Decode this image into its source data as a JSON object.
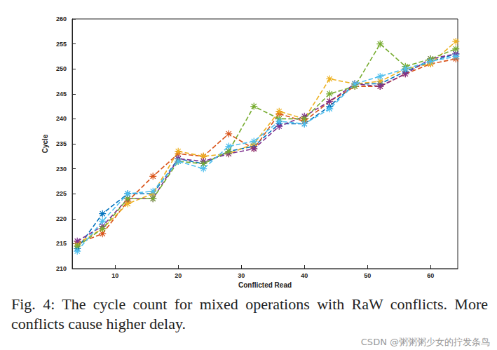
{
  "chart_data": {
    "type": "line",
    "caption": "Fig. 4: The cycle count for mixed operations with RaW conflicts. More conflicts cause higher delay.",
    "annotations": [
      "CSDN @粥粥粥少女的拧发条鸟"
    ],
    "x_label": "Conflicted Read",
    "y_label": "Cycle",
    "x": [
      4,
      8,
      12,
      16,
      20,
      24,
      28,
      32,
      36,
      40,
      44,
      48,
      52,
      56,
      60,
      64
    ],
    "series": [
      {
        "color": "#0072BD",
        "values": [
          214,
          221,
          225,
          225,
          232,
          231,
          233.5,
          234.5,
          239,
          239,
          242.5,
          247,
          247,
          249.5,
          251.5,
          253
        ]
      },
      {
        "color": "#D95319",
        "values": [
          215,
          217,
          223.5,
          228.5,
          233,
          232.5,
          237,
          234,
          241,
          239.5,
          243.5,
          246.5,
          246.5,
          249,
          251,
          252
        ]
      },
      {
        "color": "#EDB120",
        "values": [
          215,
          218,
          223,
          225,
          233.5,
          232.5,
          233,
          235,
          241.5,
          240,
          248,
          247,
          247.5,
          250,
          251,
          255.5
        ]
      },
      {
        "color": "#7E2F8E",
        "values": [
          215.5,
          218.5,
          224,
          224,
          232,
          231.5,
          233,
          234,
          238.5,
          240.5,
          243.5,
          247,
          246.5,
          249,
          252,
          253
        ]
      },
      {
        "color": "#77AC30",
        "values": [
          214.5,
          218,
          224,
          224,
          231.5,
          231,
          233.5,
          242.5,
          240,
          240,
          245,
          246.5,
          255,
          250.5,
          252,
          254
        ]
      },
      {
        "color": "#4DBEEE",
        "values": [
          213.5,
          219.5,
          225,
          225.5,
          231.5,
          230,
          234.5,
          235.5,
          239.5,
          239,
          242,
          247,
          248.5,
          250,
          251.5,
          252.5
        ]
      }
    ],
    "xlim": [
      3.2,
      64.3
    ],
    "xticks": [
      10,
      20,
      30,
      40,
      50,
      60
    ],
    "ylim": [
      210,
      260
    ],
    "yticks": [
      210,
      215,
      220,
      225,
      230,
      235,
      240,
      245,
      250,
      255,
      260
    ],
    "grid": false,
    "marker": "asterisk",
    "line_style": "dashed"
  }
}
